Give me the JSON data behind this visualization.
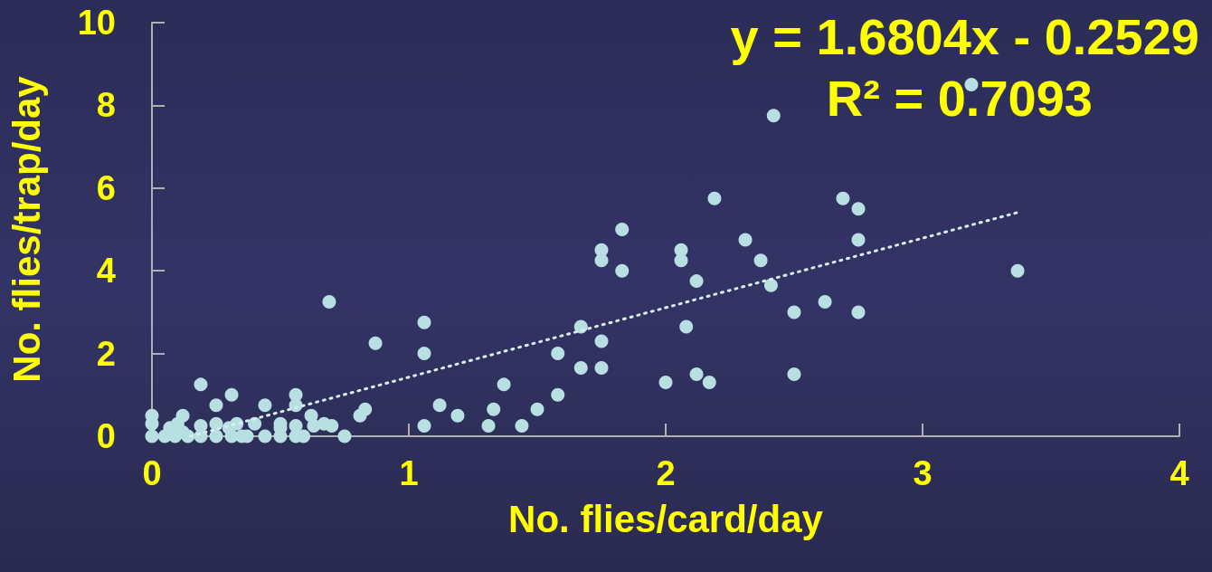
{
  "chart_data": {
    "type": "scatter",
    "xlabel": "No. flies/card/day",
    "ylabel": "No. flies/trap/day",
    "annotations": [
      "y = 1.6804x - 0.2529",
      "R² = 0.7093"
    ],
    "xlim": [
      0,
      4
    ],
    "xticks": [
      0,
      1,
      2,
      3,
      4
    ],
    "ylim": [
      0,
      10
    ],
    "yticks": [
      0,
      2,
      4,
      6,
      8,
      10
    ],
    "grid": false,
    "marker": "circle",
    "series": [
      {
        "color": "#b8e0e2",
        "x": [
          0,
          0,
          0,
          0.05,
          0.07,
          0.09,
          0.1,
          0.12,
          0.12,
          0.14,
          0.19,
          0.19,
          0.19,
          0.25,
          0.25,
          0.25,
          0.31,
          0.31,
          0.3,
          0.33,
          0.35,
          0.37,
          0.4,
          0.44,
          0.44,
          0.5,
          0.5,
          0.5,
          0.56,
          0.56,
          0.56,
          0.56,
          0.59,
          0.62,
          0.63,
          0.67,
          0.69,
          0.7,
          0.75,
          0.81,
          0.83,
          0.87,
          1.06,
          1.06,
          1.06,
          1.12,
          1.19,
          1.31,
          1.33,
          1.37,
          1.44,
          1.5,
          1.58,
          1.58,
          1.67,
          1.67,
          1.75,
          1.75,
          1.75,
          1.75,
          1.83,
          1.83,
          2.0,
          2.06,
          2.06,
          2.08,
          2.12,
          2.12,
          2.17,
          2.19,
          2.31,
          2.37,
          2.42,
          2.41,
          2.5,
          2.5,
          2.62,
          2.69,
          2.75,
          2.75,
          2.75,
          3.19,
          3.37
        ],
        "values": [
          0,
          0.3,
          0.5,
          0,
          0.2,
          0,
          0.3,
          0.5,
          0.1,
          0,
          1.25,
          0,
          0.25,
          0.75,
          0,
          0.3,
          1.0,
          0,
          0.2,
          0.3,
          0,
          0,
          0.3,
          0.75,
          0,
          0.3,
          0,
          0.2,
          1.0,
          0.75,
          0.25,
          0,
          0,
          0.5,
          0.25,
          0.3,
          3.25,
          0.25,
          0,
          0.5,
          0.65,
          2.25,
          2.75,
          2.0,
          0.25,
          0.75,
          0.5,
          0.25,
          0.65,
          1.25,
          0.25,
          0.65,
          1.0,
          2.0,
          1.65,
          2.65,
          1.65,
          2.3,
          4.25,
          4.5,
          5.0,
          4.0,
          1.3,
          4.25,
          4.5,
          2.65,
          3.75,
          1.5,
          1.3,
          5.75,
          4.75,
          4.25,
          7.75,
          3.65,
          3.0,
          1.5,
          3.25,
          5.75,
          5.5,
          4.75,
          3.0,
          8.5,
          4.0
        ]
      },
      {
        "type": "line",
        "color": "#d8eef0",
        "line_style": "dotted",
        "marker": "none",
        "x": [
          0.15,
          3.37
        ],
        "values": [
          0.0,
          5.41
        ]
      }
    ]
  }
}
